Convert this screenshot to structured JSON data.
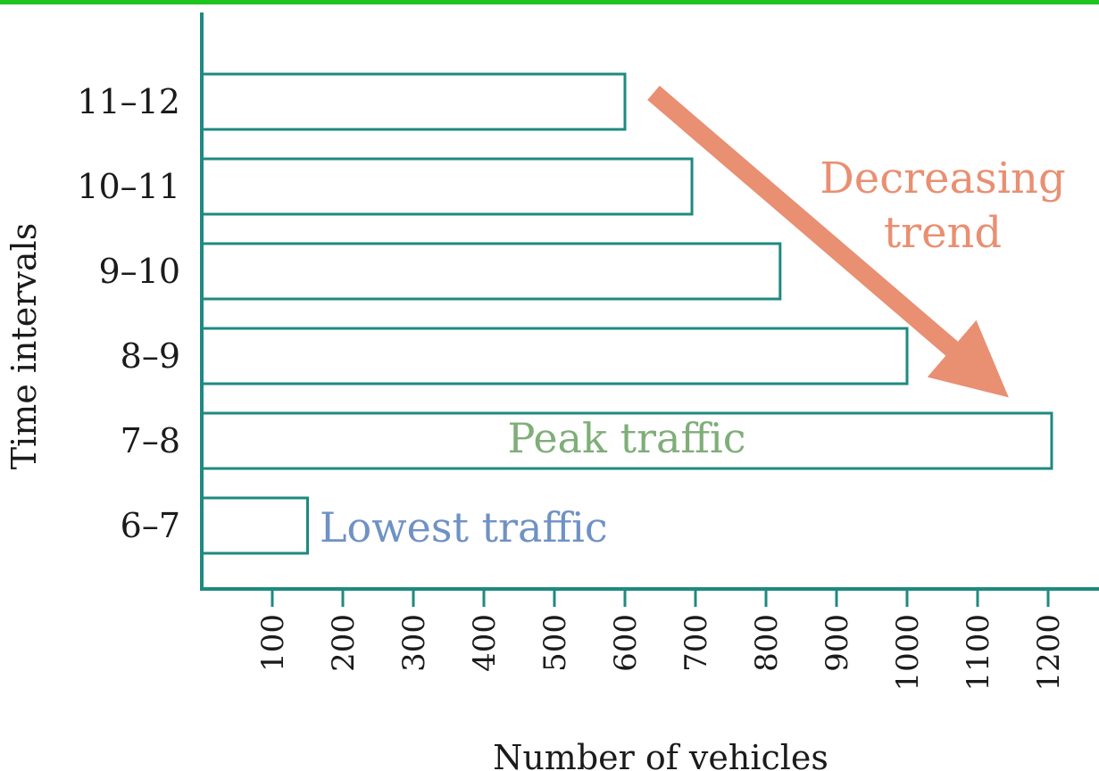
{
  "chart_data": {
    "type": "bar",
    "orientation": "horizontal",
    "categories": [
      "11–12",
      "10–11",
      "9–10",
      "8–9",
      "7–8",
      "6–7"
    ],
    "values": [
      600,
      695,
      820,
      1000,
      1205,
      150
    ],
    "xlabel": "Number of vehicles",
    "ylabel": "Time intervals",
    "xticks": [
      "100",
      "200",
      "300",
      "400",
      "500",
      "600",
      "700",
      "800",
      "900",
      "1000",
      "1100",
      "1200"
    ],
    "xlim": [
      0,
      1200
    ],
    "grid": false,
    "colors": {
      "bar_stroke": "#1e8a80",
      "trend": "#e98f72",
      "peak": "#7fae78",
      "lowest": "#6f92c4",
      "top_border": "#1fc51f"
    },
    "annotations": {
      "trend_line1": "Decreasing",
      "trend_line2": "trend",
      "peak": "Peak traffic",
      "lowest": "Lowest traffic"
    }
  }
}
